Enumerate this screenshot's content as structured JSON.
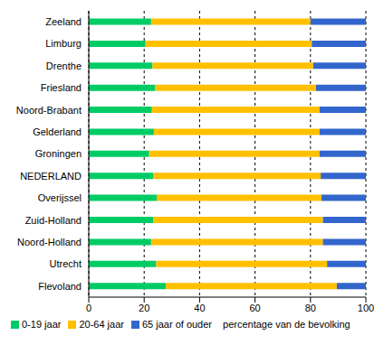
{
  "chart_data": {
    "type": "bar",
    "orientation": "horizontal",
    "stacked": true,
    "grid": true,
    "legend": "bottom",
    "x_label": "percentage van de bevolking",
    "categories": [
      "Zeeland",
      "Limburg",
      "Drenthe",
      "Friesland",
      "Noord-Brabant",
      "Gelderland",
      "Groningen",
      "NEDERLAND",
      "Overijssel",
      "Zuid-Holland",
      "Noord-Holland",
      "Utrecht",
      "Flevoland"
    ],
    "series": [
      {
        "name": "0-19 jaar",
        "color": "#00cc66",
        "values": [
          22.5,
          20.5,
          23,
          24,
          22.8,
          23.5,
          21.8,
          23.2,
          24.5,
          23.3,
          22.5,
          24.3,
          27.8
        ]
      },
      {
        "name": "20-64 jaar",
        "color": "#ffc000",
        "values": [
          57.5,
          60,
          58,
          58,
          60.5,
          59.8,
          61.5,
          60.5,
          59.5,
          61.2,
          62,
          61.7,
          61.7
        ]
      },
      {
        "name": "65 jaar of ouder",
        "color": "#3366cc",
        "values": [
          20,
          19.5,
          19,
          18,
          16.7,
          16.7,
          16.7,
          16.3,
          16,
          15.5,
          15.5,
          14,
          10.5
        ]
      }
    ],
    "xlim": [
      0,
      100
    ],
    "xticks": [
      0,
      20,
      40,
      60,
      80,
      100
    ]
  }
}
